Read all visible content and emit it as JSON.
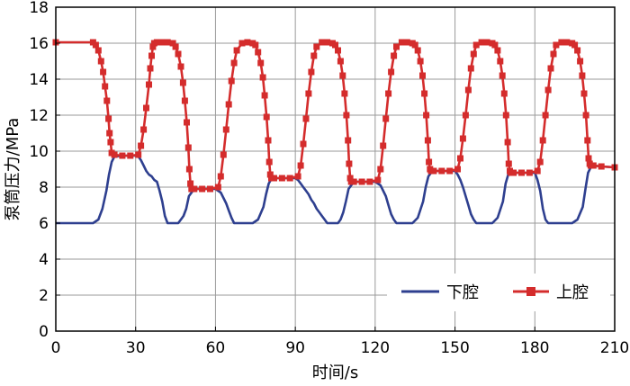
{
  "chart_data": {
    "type": "line",
    "xlabel": "时间/s",
    "ylabel": "泵筒压力/MPa",
    "xlim": [
      0,
      210
    ],
    "ylim": [
      0,
      18
    ],
    "xticks": [
      0,
      30,
      60,
      90,
      120,
      150,
      180,
      210
    ],
    "yticks": [
      0,
      2,
      4,
      6,
      8,
      10,
      12,
      14,
      16,
      18
    ],
    "grid": true,
    "legend": "bottom-right",
    "series": [
      {
        "name": "下腔",
        "color": "#2e3f8f",
        "marker": "none",
        "x": [
          0,
          14,
          16,
          17.5,
          19,
          20,
          21,
          22,
          25,
          30,
          31,
          32,
          33,
          34,
          35,
          36,
          37,
          38,
          39,
          40,
          41,
          42,
          44,
          46,
          47,
          48,
          49,
          50,
          52,
          55,
          60,
          62,
          63,
          64,
          65,
          66,
          67,
          68,
          70,
          74,
          76,
          78,
          79,
          80,
          81,
          82,
          85,
          90,
          91,
          92,
          93,
          94,
          95,
          96,
          97,
          98,
          99,
          100,
          101,
          102,
          104,
          106,
          107,
          108,
          109,
          110,
          112,
          115,
          120,
          122,
          124,
          125,
          126,
          127,
          128,
          130,
          134,
          136,
          138,
          139,
          140,
          141,
          142,
          145,
          150,
          151,
          152,
          153,
          154,
          155,
          156,
          157,
          158,
          160,
          164,
          166,
          168,
          169,
          170,
          171,
          172,
          175,
          180,
          181,
          182,
          183,
          184,
          185,
          186,
          188,
          194,
          196,
          198,
          199,
          200,
          201,
          202,
          205,
          210
        ],
        "y": [
          6,
          6,
          6.2,
          6.8,
          7.8,
          8.7,
          9.4,
          9.7,
          9.75,
          9.75,
          9.7,
          9.5,
          9.2,
          8.9,
          8.7,
          8.6,
          8.4,
          8.3,
          7.8,
          7.2,
          6.4,
          6,
          6,
          6,
          6.2,
          6.4,
          6.8,
          7.5,
          7.9,
          7.9,
          7.9,
          7.7,
          7.4,
          7.1,
          6.7,
          6.3,
          6,
          6,
          6,
          6,
          6.2,
          6.9,
          7.6,
          8.2,
          8.45,
          8.5,
          8.5,
          8.5,
          8.4,
          8.2,
          8.0,
          7.8,
          7.6,
          7.3,
          7.1,
          6.8,
          6.6,
          6.4,
          6.2,
          6,
          6,
          6,
          6.2,
          6.6,
          7.2,
          7.9,
          8.3,
          8.3,
          8.3,
          8.1,
          7.5,
          7.0,
          6.5,
          6.2,
          6,
          6,
          6,
          6.3,
          7.2,
          8,
          8.6,
          8.8,
          8.9,
          8.9,
          8.9,
          8.7,
          8.4,
          8.0,
          7.5,
          7.0,
          6.5,
          6.2,
          6,
          6,
          6,
          6.3,
          7.2,
          8.2,
          8.7,
          8.8,
          8.8,
          8.8,
          8.8,
          8.4,
          7.8,
          6.8,
          6.2,
          6,
          6,
          6,
          6,
          6.2,
          6.9,
          7.9,
          8.8,
          9.1,
          9.2,
          9.15,
          9.1
        ]
      },
      {
        "name": "上腔",
        "color": "#d42c2c",
        "marker": "square",
        "x": [
          0,
          14,
          15,
          16,
          17,
          17.8,
          18.5,
          19.2,
          19.8,
          20.2,
          20.6,
          21,
          22,
          25,
          28,
          31,
          32,
          33,
          34,
          35,
          35.5,
          36,
          36.5,
          37,
          38,
          40,
          42,
          44,
          45,
          46,
          47,
          47.8,
          48.5,
          49.2,
          49.8,
          50.2,
          50.6,
          51,
          52,
          55,
          58,
          61,
          62,
          63,
          64,
          65,
          66,
          67,
          68,
          70,
          72,
          74,
          75,
          76,
          77,
          77.8,
          78.5,
          79.2,
          79.8,
          80.2,
          80.6,
          81,
          82,
          85,
          88,
          91,
          92,
          93,
          94,
          95,
          96,
          97,
          98,
          100,
          102,
          104,
          105,
          106,
          107,
          107.8,
          108.5,
          109.2,
          109.8,
          110.2,
          110.6,
          111,
          112,
          115,
          118,
          121,
          122,
          123,
          124,
          125,
          126,
          127,
          128,
          130,
          132,
          134,
          135,
          136,
          137,
          137.8,
          138.5,
          139.2,
          139.8,
          140.2,
          140.6,
          141,
          142,
          145,
          148,
          151,
          152,
          153,
          154,
          155,
          156,
          157,
          158,
          160,
          162,
          164,
          165,
          166,
          167,
          167.8,
          168.5,
          169.2,
          169.8,
          170.2,
          170.6,
          171,
          172,
          175,
          178,
          181,
          182,
          183,
          184,
          185,
          186,
          187,
          188,
          190,
          192,
          194,
          195,
          196,
          197,
          197.8,
          198.5,
          199.2,
          199.8,
          200.2,
          200.6,
          201,
          202,
          205,
          210
        ],
        "y": [
          16.05,
          16.05,
          15.9,
          15.6,
          15.0,
          14.4,
          13.6,
          12.8,
          11.8,
          11.0,
          10.5,
          9.9,
          9.8,
          9.75,
          9.75,
          9.8,
          10.3,
          11.2,
          12.4,
          13.7,
          14.6,
          15.3,
          15.8,
          16.0,
          16.05,
          16.05,
          16.05,
          16.0,
          15.8,
          15.4,
          14.7,
          13.8,
          12.8,
          11.6,
          10.2,
          9.0,
          8.2,
          7.9,
          7.9,
          7.9,
          7.9,
          8.0,
          8.6,
          9.8,
          11.2,
          12.6,
          13.9,
          14.9,
          15.6,
          16.0,
          16.05,
          16.0,
          15.9,
          15.5,
          14.9,
          14.1,
          13.1,
          11.9,
          10.6,
          9.4,
          8.7,
          8.5,
          8.5,
          8.5,
          8.5,
          8.6,
          9.2,
          10.4,
          11.8,
          13.2,
          14.4,
          15.3,
          15.8,
          16.05,
          16.05,
          16.0,
          15.9,
          15.6,
          15.0,
          14.2,
          13.2,
          12.0,
          10.6,
          9.3,
          8.5,
          8.3,
          8.3,
          8.3,
          8.3,
          8.4,
          9.0,
          10.3,
          11.8,
          13.2,
          14.4,
          15.3,
          15.8,
          16.05,
          16.05,
          16.0,
          15.9,
          15.6,
          15.0,
          14.2,
          13.2,
          12.0,
          10.6,
          9.4,
          9.0,
          8.9,
          8.9,
          8.9,
          8.9,
          9.0,
          9.6,
          10.7,
          12.0,
          13.4,
          14.6,
          15.4,
          15.9,
          16.05,
          16.05,
          16.0,
          15.9,
          15.6,
          15.0,
          14.2,
          13.2,
          12.0,
          10.5,
          9.3,
          8.9,
          8.8,
          8.8,
          8.8,
          8.8,
          8.9,
          9.4,
          10.6,
          12.0,
          13.4,
          14.6,
          15.4,
          15.9,
          16.05,
          16.05,
          16.0,
          15.9,
          15.6,
          15.0,
          14.2,
          13.2,
          12.0,
          10.6,
          9.6,
          9.3,
          9.2,
          9.2,
          9.15,
          9.1
        ]
      }
    ]
  }
}
